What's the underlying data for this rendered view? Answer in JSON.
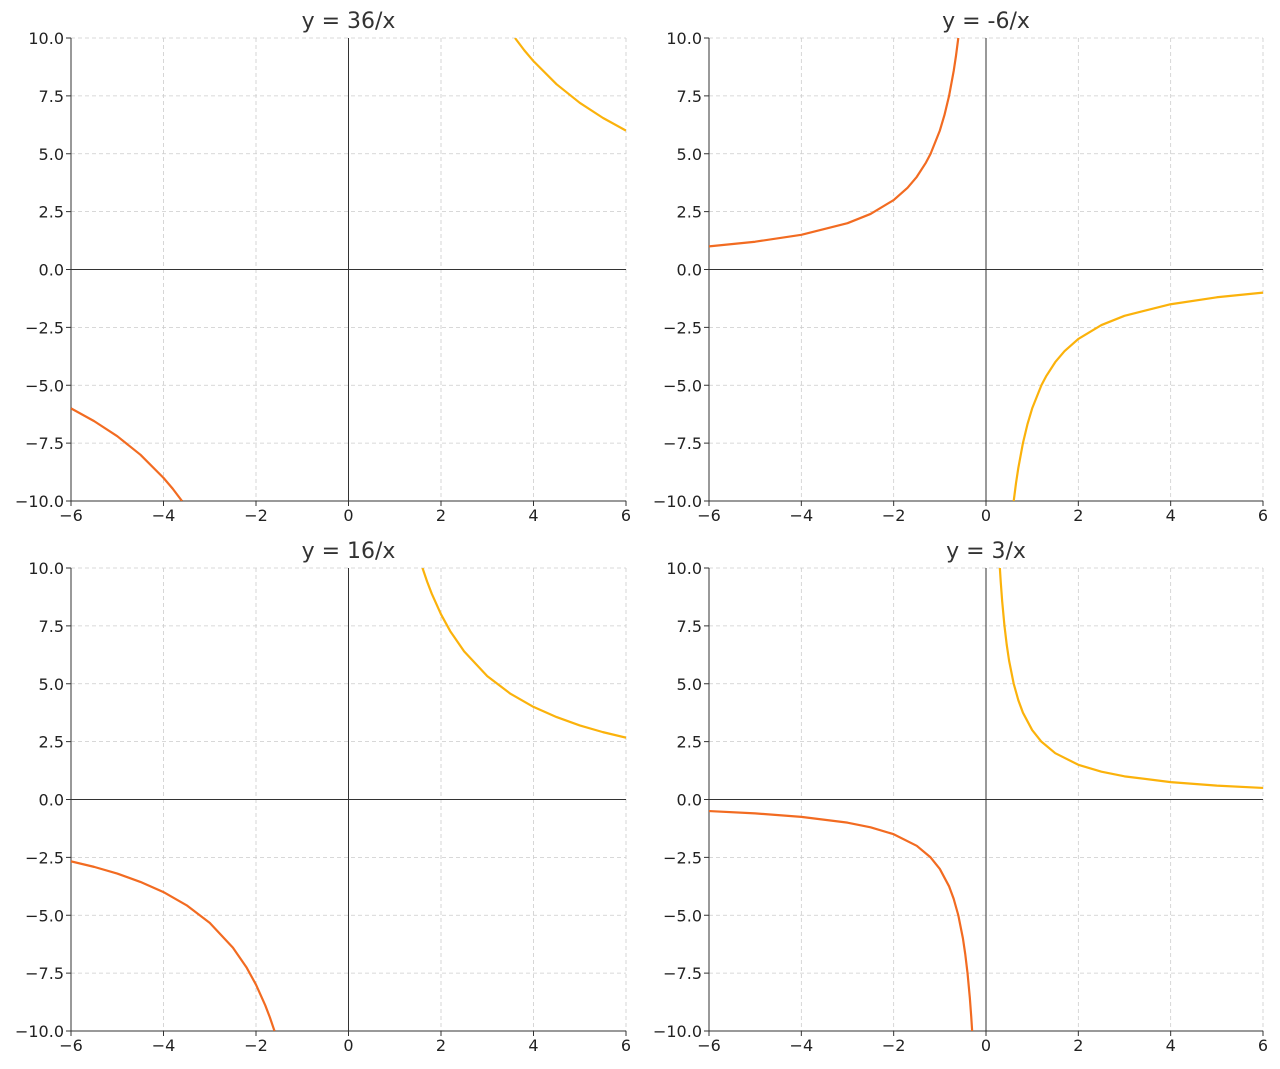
{
  "chart_data": [
    {
      "type": "line",
      "title": "y = 36/x",
      "grid": true,
      "zero_lines": true,
      "xlim": [
        -6,
        6
      ],
      "ylim": [
        -10,
        10
      ],
      "xticks": [
        {
          "value": -6,
          "label": "−6"
        },
        {
          "value": -4,
          "label": "−4"
        },
        {
          "value": -2,
          "label": "−2"
        },
        0,
        2,
        4,
        6
      ],
      "yticks": [
        {
          "value": -10,
          "label": "−10.0"
        },
        {
          "value": -7.5,
          "label": "−7.5"
        },
        {
          "value": -5,
          "label": "−5.0"
        },
        {
          "value": -2.5,
          "label": "−2.5"
        },
        {
          "value": 0,
          "label": "0.0"
        },
        2.5,
        {
          "value": 5,
          "label": "5.0"
        },
        7.5,
        {
          "value": 10,
          "label": "10.0"
        }
      ],
      "series": [
        {
          "color": "#f26b21",
          "x": [
            -6,
            -5.5,
            -5,
            -4.5,
            -4,
            -3.8,
            -3.6
          ],
          "values": [
            -6,
            -6.55,
            -7.2,
            -8,
            -9,
            -9.47,
            -10
          ]
        },
        {
          "color": "#fbb20b",
          "x": [
            3.6,
            3.8,
            4,
            4.5,
            5,
            5.5,
            6
          ],
          "values": [
            10,
            9.47,
            9,
            8,
            7.2,
            6.55,
            6
          ]
        }
      ]
    },
    {
      "type": "line",
      "title": "y = -6/x",
      "grid": true,
      "zero_lines": true,
      "xlim": [
        -6,
        6
      ],
      "ylim": [
        -10,
        10
      ],
      "xticks": [
        {
          "value": -6,
          "label": "−6"
        },
        {
          "value": -4,
          "label": "−4"
        },
        {
          "value": -2,
          "label": "−2"
        },
        0,
        2,
        4,
        6
      ],
      "yticks": [
        {
          "value": -10,
          "label": "−10.0"
        },
        {
          "value": -7.5,
          "label": "−7.5"
        },
        {
          "value": -5,
          "label": "−5.0"
        },
        {
          "value": -2.5,
          "label": "−2.5"
        },
        {
          "value": 0,
          "label": "0.0"
        },
        2.5,
        {
          "value": 5,
          "label": "5.0"
        },
        7.5,
        {
          "value": 10,
          "label": "10.0"
        }
      ],
      "series": [
        {
          "color": "#f26b21",
          "x": [
            -6,
            -5,
            -4,
            -3,
            -2.5,
            -2,
            -1.7,
            -1.5,
            -1.3,
            -1.2,
            -1,
            -0.9,
            -0.8,
            -0.7,
            -0.65,
            -0.6
          ],
          "values": [
            1,
            1.2,
            1.5,
            2,
            2.4,
            3,
            3.53,
            4,
            4.62,
            5,
            6,
            6.67,
            7.5,
            8.57,
            9.23,
            10
          ]
        },
        {
          "color": "#fbb20b",
          "x": [
            0.6,
            0.65,
            0.7,
            0.8,
            0.9,
            1,
            1.2,
            1.3,
            1.5,
            1.7,
            2,
            2.5,
            3,
            4,
            5,
            6
          ],
          "values": [
            -10,
            -9.23,
            -8.57,
            -7.5,
            -6.67,
            -6,
            -5,
            -4.62,
            -4,
            -3.53,
            -3,
            -2.4,
            -2,
            -1.5,
            -1.2,
            -1
          ]
        }
      ]
    },
    {
      "type": "line",
      "title": "y = 16/x",
      "grid": true,
      "zero_lines": true,
      "xlim": [
        -6,
        6
      ],
      "ylim": [
        -10,
        10
      ],
      "xticks": [
        {
          "value": -6,
          "label": "−6"
        },
        {
          "value": -4,
          "label": "−4"
        },
        {
          "value": -2,
          "label": "−2"
        },
        0,
        2,
        4,
        6
      ],
      "yticks": [
        {
          "value": -10,
          "label": "−10.0"
        },
        {
          "value": -7.5,
          "label": "−7.5"
        },
        {
          "value": -5,
          "label": "−5.0"
        },
        {
          "value": -2.5,
          "label": "−2.5"
        },
        {
          "value": 0,
          "label": "0.0"
        },
        2.5,
        {
          "value": 5,
          "label": "5.0"
        },
        7.5,
        {
          "value": 10,
          "label": "10.0"
        }
      ],
      "series": [
        {
          "color": "#f26b21",
          "x": [
            -6,
            -5.5,
            -5,
            -4.5,
            -4,
            -3.5,
            -3,
            -2.5,
            -2.2,
            -2,
            -1.8,
            -1.7,
            -1.6
          ],
          "values": [
            -2.67,
            -2.91,
            -3.2,
            -3.56,
            -4,
            -4.57,
            -5.33,
            -6.4,
            -7.27,
            -8,
            -8.89,
            -9.41,
            -10
          ]
        },
        {
          "color": "#fbb20b",
          "x": [
            1.6,
            1.7,
            1.8,
            2,
            2.2,
            2.5,
            3,
            3.5,
            4,
            4.5,
            5,
            5.5,
            6
          ],
          "values": [
            10,
            9.41,
            8.89,
            8,
            7.27,
            6.4,
            5.33,
            4.57,
            4,
            3.56,
            3.2,
            2.91,
            2.67
          ]
        }
      ]
    },
    {
      "type": "line",
      "title": "y = 3/x",
      "grid": true,
      "zero_lines": true,
      "xlim": [
        -6,
        6
      ],
      "ylim": [
        -10,
        10
      ],
      "xticks": [
        {
          "value": -6,
          "label": "−6"
        },
        {
          "value": -4,
          "label": "−4"
        },
        {
          "value": -2,
          "label": "−2"
        },
        0,
        2,
        4,
        6
      ],
      "yticks": [
        {
          "value": -10,
          "label": "−10.0"
        },
        {
          "value": -7.5,
          "label": "−7.5"
        },
        {
          "value": -5,
          "label": "−5.0"
        },
        {
          "value": -2.5,
          "label": "−2.5"
        },
        {
          "value": 0,
          "label": "0.0"
        },
        2.5,
        {
          "value": 5,
          "label": "5.0"
        },
        7.5,
        {
          "value": 10,
          "label": "10.0"
        }
      ],
      "series": [
        {
          "color": "#f26b21",
          "x": [
            -6,
            -5,
            -4,
            -3,
            -2.5,
            -2,
            -1.5,
            -1.2,
            -1,
            -0.8,
            -0.7,
            -0.6,
            -0.5,
            -0.45,
            -0.4,
            -0.35,
            -0.32,
            -0.3
          ],
          "values": [
            -0.5,
            -0.6,
            -0.75,
            -1,
            -1.2,
            -1.5,
            -2,
            -2.5,
            -3,
            -3.75,
            -4.29,
            -5,
            -6,
            -6.67,
            -7.5,
            -8.57,
            -9.38,
            -10
          ]
        },
        {
          "color": "#fbb20b",
          "x": [
            0.3,
            0.32,
            0.35,
            0.4,
            0.45,
            0.5,
            0.6,
            0.7,
            0.8,
            1,
            1.2,
            1.5,
            2,
            2.5,
            3,
            4,
            5,
            6
          ],
          "values": [
            10,
            9.38,
            8.57,
            7.5,
            6.67,
            6,
            5,
            4.29,
            3.75,
            3,
            2.5,
            2,
            1.5,
            1.2,
            1,
            0.75,
            0.6,
            0.5
          ]
        }
      ]
    }
  ]
}
